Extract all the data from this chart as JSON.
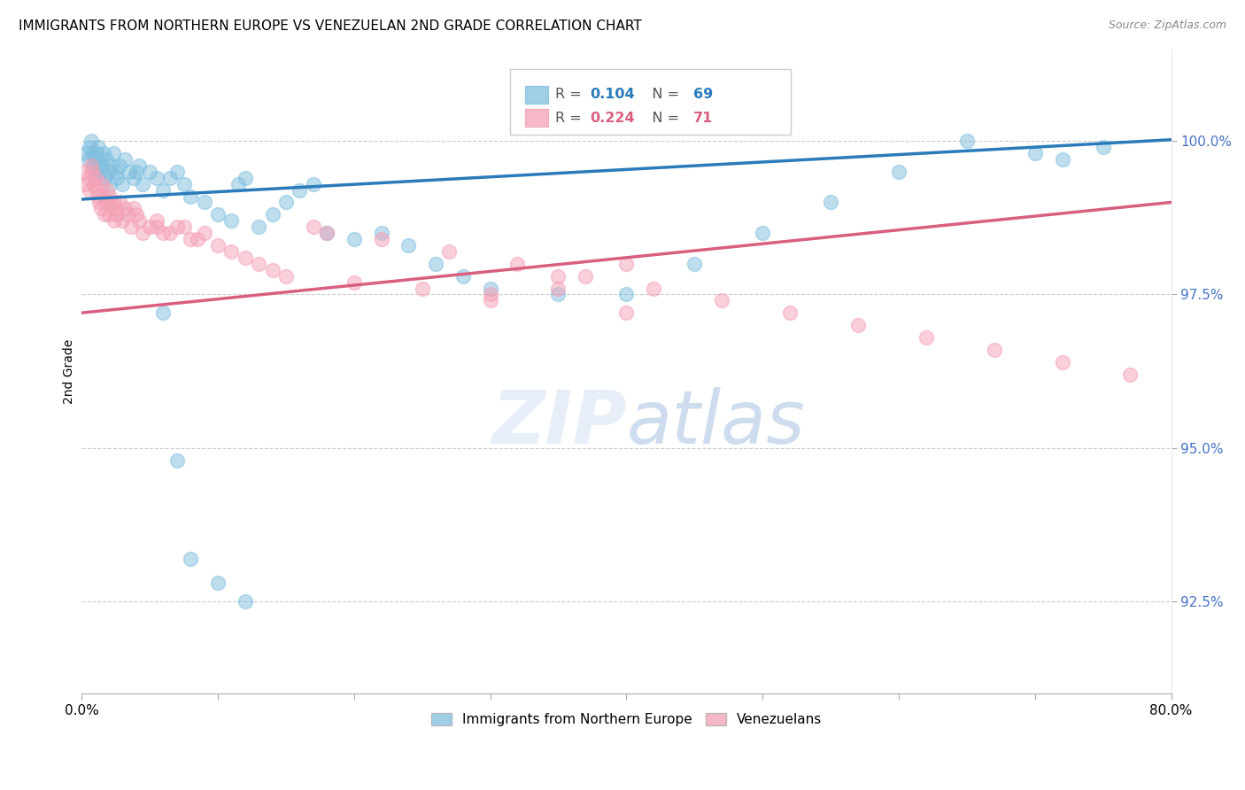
{
  "title": "IMMIGRANTS FROM NORTHERN EUROPE VS VENEZUELAN 2ND GRADE CORRELATION CHART",
  "source": "Source: ZipAtlas.com",
  "ylabel": "2nd Grade",
  "yticks": [
    92.5,
    95.0,
    97.5,
    100.0
  ],
  "ytick_labels": [
    "92.5%",
    "95.0%",
    "97.5%",
    "100.0%"
  ],
  "xlim": [
    0.0,
    80.0
  ],
  "ylim": [
    91.0,
    101.5
  ],
  "blue_R": 0.104,
  "blue_N": 69,
  "pink_R": 0.224,
  "pink_N": 71,
  "blue_color": "#7fbfdf",
  "pink_color": "#f4a0b5",
  "blue_line_color": "#2b7bba",
  "pink_line_color": "#d95f7f",
  "legend_blue_label": "Immigrants from Northern Europe",
  "legend_pink_label": "Venezuelans",
  "blue_x": [
    0.3,
    0.5,
    0.6,
    0.7,
    0.8,
    0.9,
    1.0,
    1.0,
    1.1,
    1.2,
    1.3,
    1.4,
    1.5,
    1.6,
    1.7,
    1.8,
    2.0,
    2.1,
    2.2,
    2.3,
    2.5,
    2.6,
    2.8,
    3.0,
    3.2,
    3.5,
    3.8,
    4.0,
    4.2,
    4.5,
    5.0,
    5.5,
    6.0,
    6.5,
    7.0,
    7.5,
    8.0,
    9.0,
    10.0,
    11.0,
    11.5,
    12.0,
    13.0,
    14.0,
    15.0,
    16.0,
    17.0,
    18.0,
    20.0,
    22.0,
    24.0,
    26.0,
    28.0,
    30.0,
    40.0,
    45.0,
    50.0,
    55.0,
    60.0,
    65.0,
    70.0,
    72.0,
    75.0,
    6.0,
    7.0,
    8.0,
    10.0,
    12.0,
    35.0
  ],
  "blue_y": [
    99.8,
    99.7,
    99.9,
    100.0,
    99.8,
    99.6,
    99.5,
    99.7,
    99.8,
    99.9,
    99.7,
    99.5,
    99.6,
    99.8,
    99.4,
    99.7,
    99.5,
    99.3,
    99.6,
    99.8,
    99.5,
    99.4,
    99.6,
    99.3,
    99.7,
    99.5,
    99.4,
    99.5,
    99.6,
    99.3,
    99.5,
    99.4,
    99.2,
    99.4,
    99.5,
    99.3,
    99.1,
    99.0,
    98.8,
    98.7,
    99.3,
    99.4,
    98.6,
    98.8,
    99.0,
    99.2,
    99.3,
    98.5,
    98.4,
    98.5,
    98.3,
    98.0,
    97.8,
    97.6,
    97.5,
    98.0,
    98.5,
    99.0,
    99.5,
    100.0,
    99.8,
    99.7,
    99.9,
    97.2,
    94.8,
    93.2,
    92.8,
    92.5,
    97.5
  ],
  "pink_x": [
    0.2,
    0.3,
    0.5,
    0.6,
    0.7,
    0.8,
    0.9,
    1.0,
    1.1,
    1.2,
    1.3,
    1.4,
    1.5,
    1.6,
    1.7,
    1.8,
    1.9,
    2.0,
    2.1,
    2.2,
    2.3,
    2.4,
    2.5,
    2.6,
    2.8,
    3.0,
    3.2,
    3.4,
    3.6,
    3.8,
    4.0,
    4.2,
    4.5,
    5.0,
    5.5,
    6.0,
    7.0,
    8.0,
    9.0,
    10.0,
    11.0,
    12.0,
    13.0,
    14.0,
    15.0,
    20.0,
    25.0,
    30.0,
    35.0,
    40.0,
    5.5,
    6.5,
    7.5,
    8.5,
    17.0,
    18.0,
    22.0,
    27.0,
    32.0,
    37.0,
    42.0,
    47.0,
    52.0,
    57.0,
    62.0,
    67.0,
    72.0,
    77.0,
    30.0,
    35.0,
    40.0
  ],
  "pink_y": [
    99.5,
    99.3,
    99.4,
    99.2,
    99.6,
    99.5,
    99.3,
    99.4,
    99.2,
    99.1,
    99.0,
    98.9,
    99.3,
    99.1,
    98.8,
    99.0,
    99.2,
    98.8,
    99.1,
    98.9,
    99.0,
    98.7,
    98.9,
    98.8,
    99.0,
    98.7,
    98.9,
    98.8,
    98.6,
    98.9,
    98.8,
    98.7,
    98.5,
    98.6,
    98.7,
    98.5,
    98.6,
    98.4,
    98.5,
    98.3,
    98.2,
    98.1,
    98.0,
    97.9,
    97.8,
    97.7,
    97.6,
    97.5,
    97.8,
    98.0,
    98.6,
    98.5,
    98.6,
    98.4,
    98.6,
    98.5,
    98.4,
    98.2,
    98.0,
    97.8,
    97.6,
    97.4,
    97.2,
    97.0,
    96.8,
    96.6,
    96.4,
    96.2,
    97.4,
    97.6,
    97.2
  ]
}
